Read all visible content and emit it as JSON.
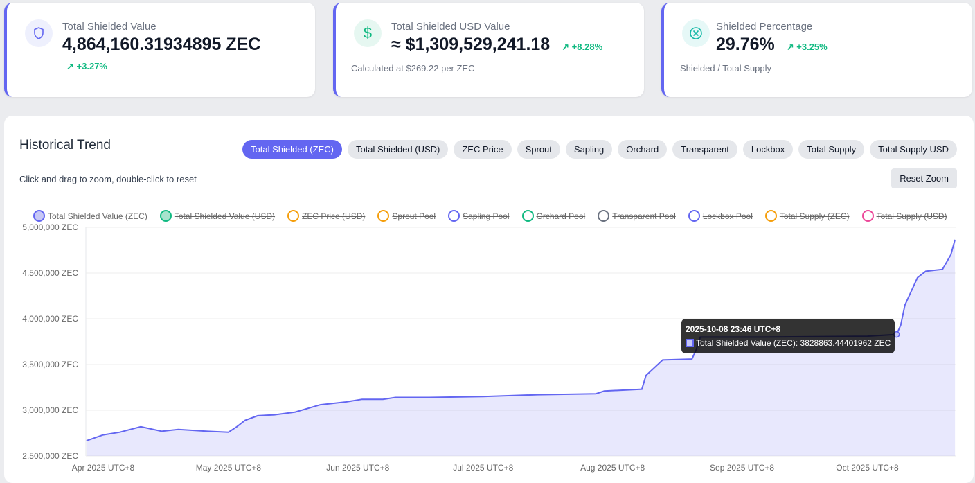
{
  "cards": [
    {
      "title": "Total Shielded Value",
      "value": "4,864,160.31934895 ZEC",
      "change": "+3.27%",
      "icon": "shield-icon",
      "icon_color": "#6366f1",
      "icon_bg": "#eef0fd"
    },
    {
      "title": "Total Shielded USD Value",
      "value": "≈ $1,309,529,241.18",
      "change": "+8.28%",
      "sub": "Calculated at $269.22 per ZEC",
      "icon": "dollar-icon",
      "icon_color": "#10b981",
      "icon_bg": "#e6f7f1"
    },
    {
      "title": "Shielded Percentage",
      "value": "29.76%",
      "change": "+3.25%",
      "sub": "Shielded / Total Supply",
      "icon": "circle-x-icon",
      "icon_color": "#14b8a6",
      "icon_bg": "#e6f8f7"
    }
  ],
  "trend": {
    "title": "Historical Trend",
    "hint": "Click and drag to zoom, double-click to reset",
    "reset": "Reset Zoom",
    "tabs": [
      "Total Shielded (ZEC)",
      "Total Shielded (USD)",
      "ZEC Price",
      "Sprout",
      "Sapling",
      "Orchard",
      "Transparent",
      "Lockbox",
      "Total Supply",
      "Total Supply USD"
    ],
    "active_tab": 0,
    "legend": [
      {
        "label": "Total Shielded Value (ZEC)",
        "color": "#6366f1",
        "fill": "#c7c8f6",
        "hidden": false
      },
      {
        "label": "Total Shielded Value (USD)",
        "color": "#10b981",
        "fill": "#a7e3cd",
        "hidden": true
      },
      {
        "label": "ZEC Price (USD)",
        "color": "#f59e0b",
        "hidden": true
      },
      {
        "label": "Sprout Pool",
        "color": "#f59e0b",
        "hidden": true
      },
      {
        "label": "Sapling Pool",
        "color": "#6366f1",
        "hidden": true
      },
      {
        "label": "Orchard Pool",
        "color": "#10b981",
        "hidden": true
      },
      {
        "label": "Transparent Pool",
        "color": "#6b7280",
        "hidden": true
      },
      {
        "label": "Lockbox Pool",
        "color": "#6366f1",
        "hidden": true
      },
      {
        "label": "Total Supply (ZEC)",
        "color": "#f59e0b",
        "hidden": true
      },
      {
        "label": "Total Supply (USD)",
        "color": "#ec4899",
        "hidden": true
      }
    ],
    "tooltip": {
      "date": "2025-10-08 23:46 UTC+8",
      "text": "Total Shielded Value (ZEC): 3828863.44401962 ZEC"
    }
  },
  "chart_data": {
    "type": "area",
    "series": [
      {
        "name": "Total Shielded Value (ZEC)",
        "color": "#6366f1",
        "x": [
          "2025-03-28",
          "2025-04-01",
          "2025-04-05",
          "2025-04-10",
          "2025-04-15",
          "2025-04-19",
          "2025-04-26",
          "2025-05-01",
          "2025-05-03",
          "2025-05-05",
          "2025-05-08",
          "2025-05-12",
          "2025-05-17",
          "2025-05-23",
          "2025-05-29",
          "2025-06-02",
          "2025-06-07",
          "2025-06-10",
          "2025-06-18",
          "2025-07-01",
          "2025-07-14",
          "2025-07-28",
          "2025-07-30",
          "2025-08-08",
          "2025-08-09",
          "2025-08-13",
          "2025-08-20",
          "2025-08-21",
          "2025-08-22",
          "2025-09-06",
          "2025-10-01",
          "2025-10-08",
          "2025-10-09",
          "2025-10-10",
          "2025-10-13",
          "2025-10-15",
          "2025-10-19",
          "2025-10-21",
          "2025-10-22"
        ],
        "y": [
          2667000,
          2730000,
          2760000,
          2820000,
          2770000,
          2790000,
          2770000,
          2760000,
          2820000,
          2890000,
          2940000,
          2950000,
          2980000,
          3060000,
          3090000,
          3120000,
          3120000,
          3140000,
          3140000,
          3150000,
          3170000,
          3180000,
          3210000,
          3230000,
          3380000,
          3550000,
          3560000,
          3660000,
          3800000,
          3800000,
          3810000,
          3828863,
          3930000,
          4150000,
          4450000,
          4520000,
          4540000,
          4700000,
          4864160
        ]
      }
    ],
    "ylim": [
      2500000,
      5000000
    ],
    "yticks": [
      "5,000,000 ZEC",
      "4,500,000 ZEC",
      "4,000,000 ZEC",
      "3,500,000 ZEC",
      "3,000,000 ZEC",
      "2,500,000 ZEC"
    ],
    "ytick_values": [
      5000000,
      4500000,
      4000000,
      3500000,
      3000000,
      2500000
    ],
    "xticks": [
      "Apr 2025 UTC+8",
      "May 2025 UTC+8",
      "Jun 2025 UTC+8",
      "Jul 2025 UTC+8",
      "Aug 2025 UTC+8",
      "Sep 2025 UTC+8",
      "Oct 2025 UTC+8"
    ],
    "xtick_dates": [
      "2025-04-01",
      "2025-05-01",
      "2025-06-01",
      "2025-07-01",
      "2025-08-01",
      "2025-09-01",
      "2025-10-01"
    ],
    "grid": true,
    "legend": "top"
  }
}
